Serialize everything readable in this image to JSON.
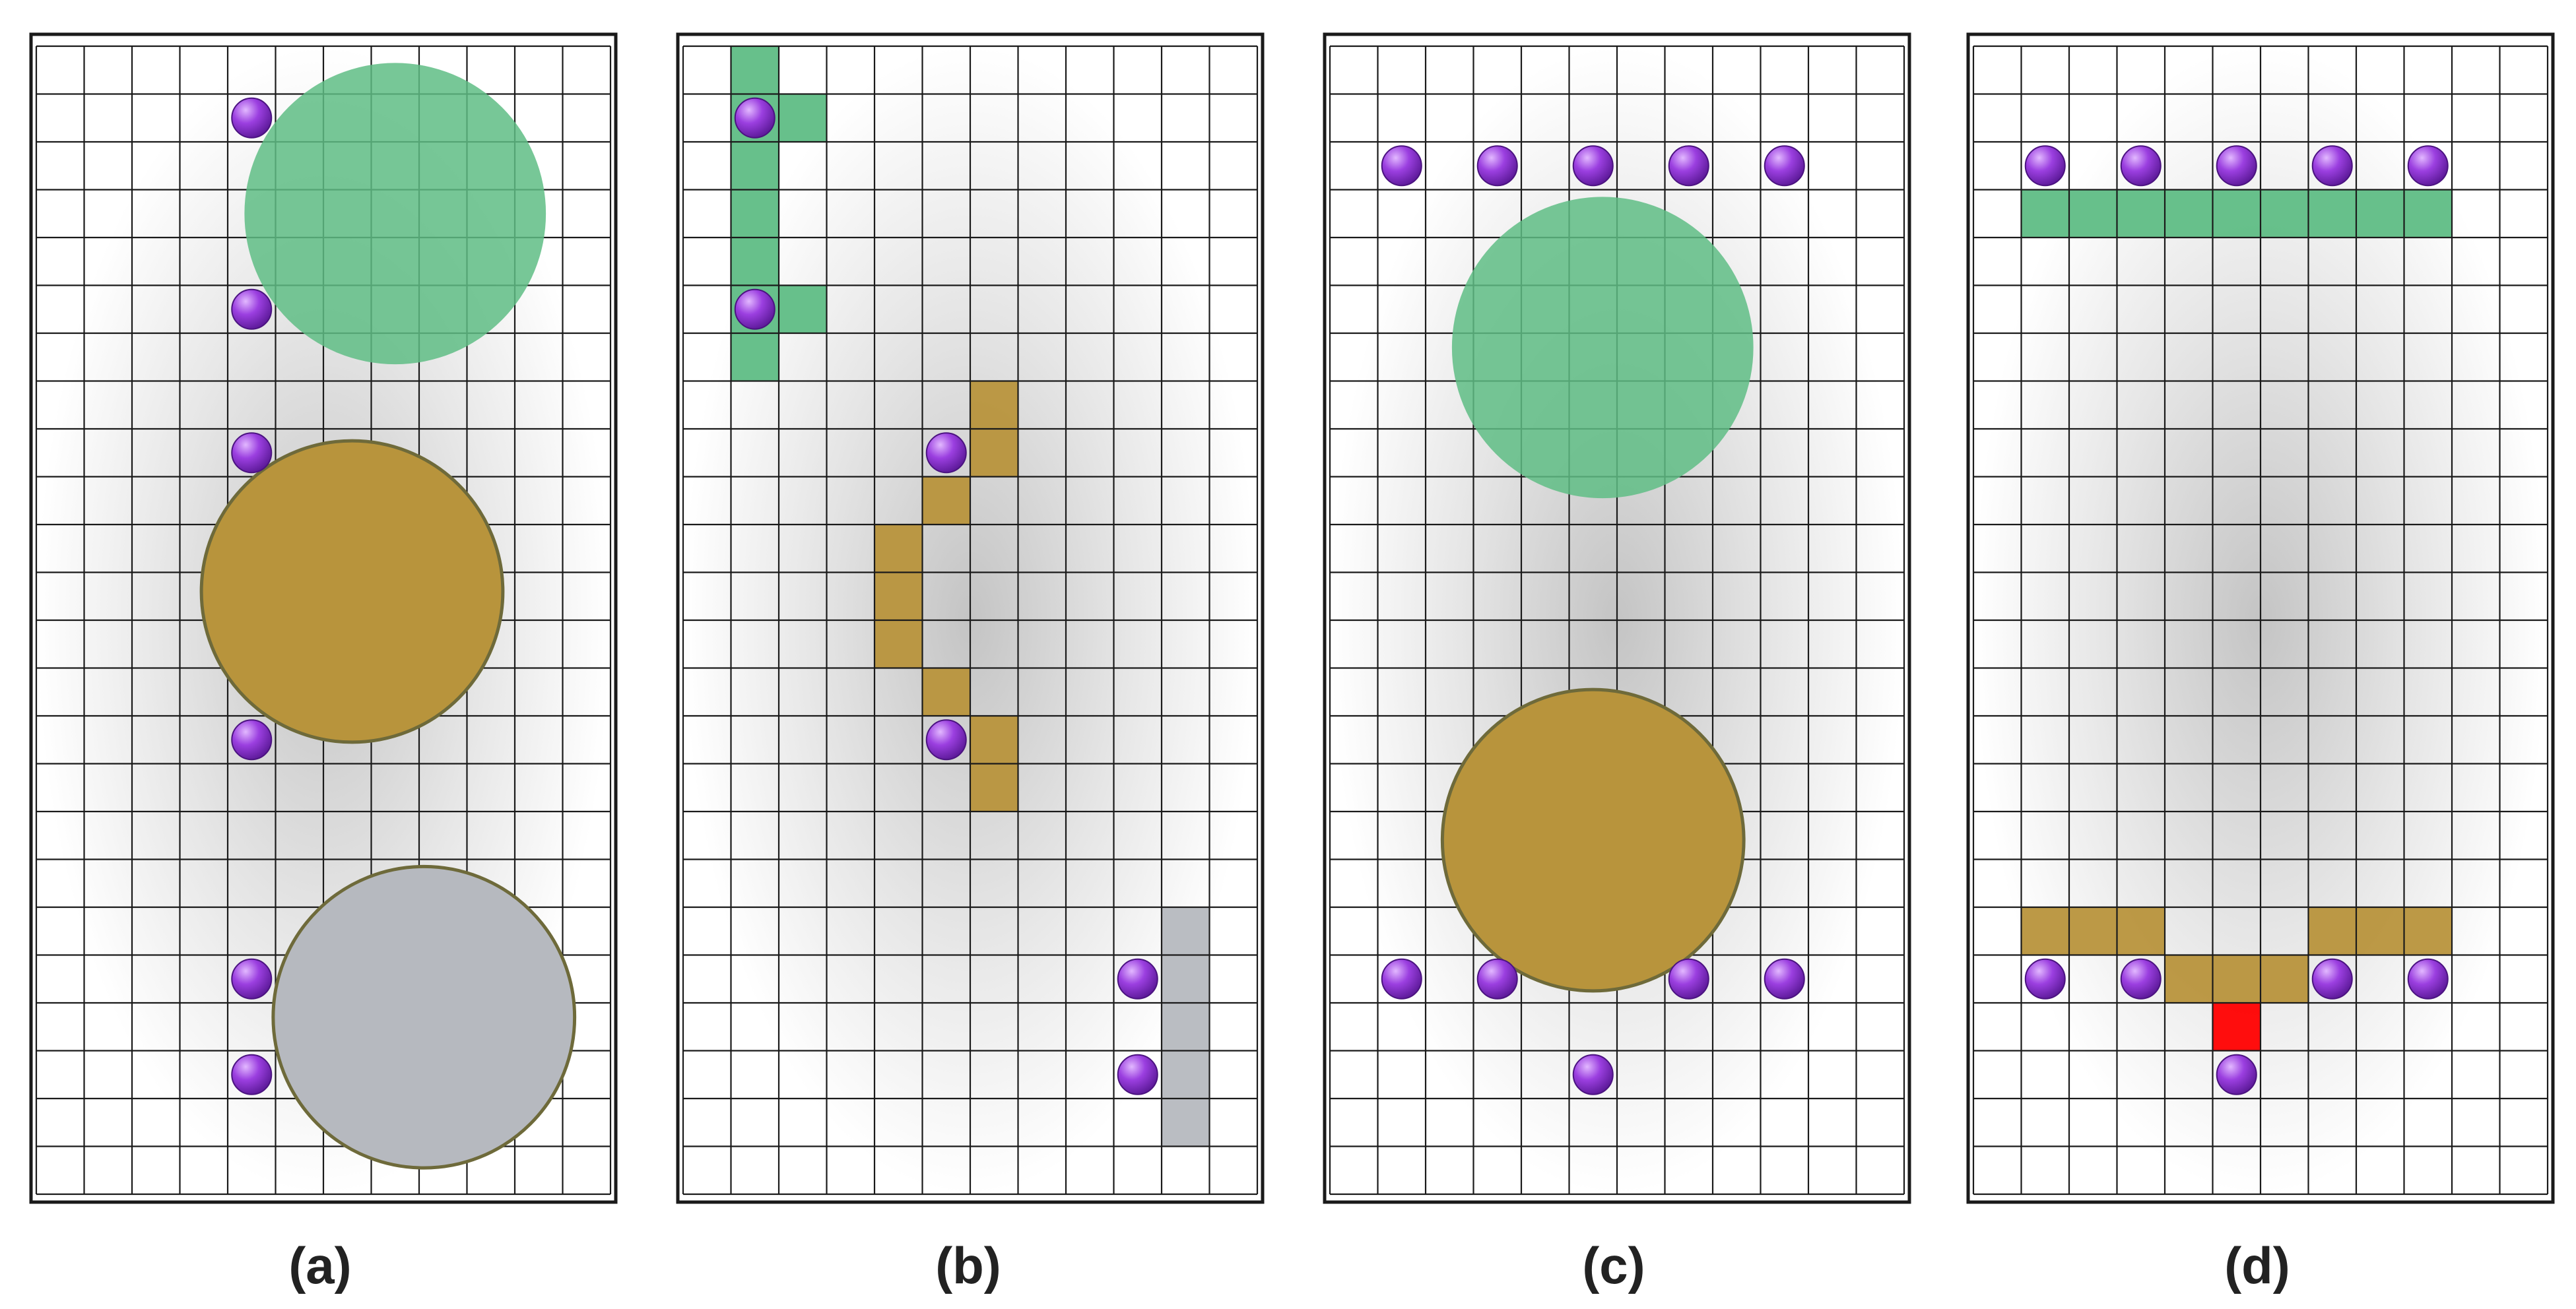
{
  "colors": {
    "green": "#5fbd85",
    "brown": "#b8943c",
    "gray": "#b6b9bf",
    "red": "#ff0000",
    "purple": "#8a2be2",
    "grid": "#1a1a1a",
    "frame": "#1a1a1a"
  },
  "panels": [
    {
      "label": "(a)",
      "circles": [
        {
          "color": "green",
          "cx": 7.5,
          "cy": 3.5,
          "r": 3.15,
          "outline": false
        },
        {
          "color": "brown",
          "cx": 6.6,
          "cy": 11.4,
          "r": 3.15,
          "outline": true
        },
        {
          "color": "gray",
          "cx": 8.1,
          "cy": 20.3,
          "r": 3.15,
          "outline": true
        }
      ],
      "cells": [],
      "dots": [
        [
          4.5,
          1.5
        ],
        [
          4.5,
          5.5
        ],
        [
          4.5,
          8.5
        ],
        [
          4.5,
          14.5
        ],
        [
          4.5,
          19.5
        ],
        [
          4.5,
          21.5
        ]
      ]
    },
    {
      "label": "(b)",
      "circles": [],
      "cells": [
        {
          "color": "green",
          "col": 1,
          "row": 0
        },
        {
          "color": "green",
          "col": 1,
          "row": 1
        },
        {
          "color": "green",
          "col": 2,
          "row": 1
        },
        {
          "color": "green",
          "col": 1,
          "row": 2
        },
        {
          "color": "green",
          "col": 1,
          "row": 3
        },
        {
          "color": "green",
          "col": 1,
          "row": 4
        },
        {
          "color": "green",
          "col": 1,
          "row": 5
        },
        {
          "color": "green",
          "col": 2,
          "row": 5
        },
        {
          "color": "green",
          "col": 1,
          "row": 6
        },
        {
          "color": "brown",
          "col": 6,
          "row": 7
        },
        {
          "color": "brown",
          "col": 6,
          "row": 8
        },
        {
          "color": "brown",
          "col": 5,
          "row": 9
        },
        {
          "color": "brown",
          "col": 4,
          "row": 10
        },
        {
          "color": "brown",
          "col": 4,
          "row": 11
        },
        {
          "color": "brown",
          "col": 4,
          "row": 12
        },
        {
          "color": "brown",
          "col": 5,
          "row": 13
        },
        {
          "color": "brown",
          "col": 6,
          "row": 14
        },
        {
          "color": "brown",
          "col": 6,
          "row": 15
        },
        {
          "color": "gray",
          "col": 10,
          "row": 18
        },
        {
          "color": "gray",
          "col": 10,
          "row": 19
        },
        {
          "color": "gray",
          "col": 10,
          "row": 20
        },
        {
          "color": "gray",
          "col": 10,
          "row": 21
        },
        {
          "color": "gray",
          "col": 10,
          "row": 22
        }
      ],
      "dots": [
        [
          1.5,
          1.5
        ],
        [
          1.5,
          5.5
        ],
        [
          5.5,
          8.5
        ],
        [
          5.5,
          14.5
        ],
        [
          9.5,
          19.5
        ],
        [
          9.5,
          21.5
        ]
      ]
    },
    {
      "label": "(c)",
      "circles": [
        {
          "color": "green",
          "cx": 5.7,
          "cy": 6.3,
          "r": 3.15,
          "outline": false
        },
        {
          "color": "brown",
          "cx": 5.5,
          "cy": 16.6,
          "r": 3.15,
          "outline": true
        }
      ],
      "cells": [],
      "dots": [
        [
          1.5,
          2.5
        ],
        [
          3.5,
          2.5
        ],
        [
          5.5,
          2.5
        ],
        [
          7.5,
          2.5
        ],
        [
          9.5,
          2.5
        ],
        [
          1.5,
          19.5
        ],
        [
          3.5,
          19.5
        ],
        [
          7.5,
          19.5
        ],
        [
          9.5,
          19.5
        ],
        [
          5.5,
          21.5
        ]
      ]
    },
    {
      "label": "(d)",
      "circles": [],
      "cells": [
        {
          "color": "green",
          "col": 1,
          "row": 3
        },
        {
          "color": "green",
          "col": 2,
          "row": 3
        },
        {
          "color": "green",
          "col": 3,
          "row": 3
        },
        {
          "color": "green",
          "col": 4,
          "row": 3
        },
        {
          "color": "green",
          "col": 5,
          "row": 3
        },
        {
          "color": "green",
          "col": 6,
          "row": 3
        },
        {
          "color": "green",
          "col": 7,
          "row": 3
        },
        {
          "color": "green",
          "col": 8,
          "row": 3
        },
        {
          "color": "green",
          "col": 9,
          "row": 3
        },
        {
          "color": "brown",
          "col": 1,
          "row": 18
        },
        {
          "color": "brown",
          "col": 2,
          "row": 18
        },
        {
          "color": "brown",
          "col": 3,
          "row": 18
        },
        {
          "color": "brown",
          "col": 7,
          "row": 18
        },
        {
          "color": "brown",
          "col": 8,
          "row": 18
        },
        {
          "color": "brown",
          "col": 9,
          "row": 18
        },
        {
          "color": "brown",
          "col": 4,
          "row": 19
        },
        {
          "color": "brown",
          "col": 5,
          "row": 19
        },
        {
          "color": "brown",
          "col": 6,
          "row": 19
        },
        {
          "color": "red",
          "col": 5,
          "row": 20
        }
      ],
      "dots": [
        [
          1.5,
          2.5
        ],
        [
          3.5,
          2.5
        ],
        [
          5.5,
          2.5
        ],
        [
          7.5,
          2.5
        ],
        [
          9.5,
          2.5
        ],
        [
          1.5,
          19.5
        ],
        [
          3.5,
          19.5
        ],
        [
          7.5,
          19.5
        ],
        [
          9.5,
          19.5
        ],
        [
          5.5,
          21.5
        ]
      ]
    }
  ]
}
